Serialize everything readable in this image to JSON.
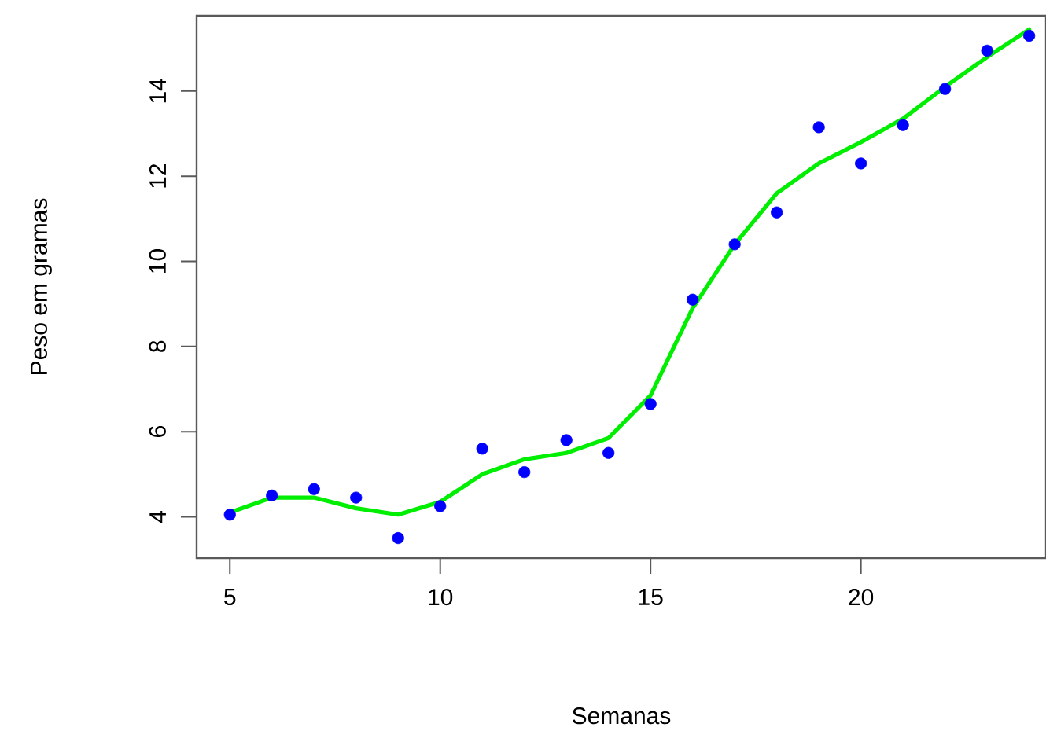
{
  "chart_data": {
    "type": "scatter",
    "xlabel": "Semanas",
    "ylabel": "Peso em gramas",
    "xlim": [
      4.21,
      24.4
    ],
    "ylim": [
      3.03,
      15.77
    ],
    "xticks": [
      5,
      10,
      15,
      20
    ],
    "yticks": [
      4,
      6,
      8,
      10,
      12,
      14
    ],
    "series": [
      {
        "type": "scatter",
        "color": "#0000ff",
        "marker": "circle",
        "x": [
          5,
          6,
          7,
          8,
          9,
          10,
          11,
          12,
          13,
          14,
          15,
          16,
          17,
          18,
          19,
          20,
          21,
          22,
          23,
          24
        ],
        "values": [
          4.05,
          4.5,
          4.65,
          4.45,
          3.5,
          4.25,
          5.6,
          5.05,
          5.8,
          5.5,
          6.65,
          9.1,
          10.4,
          11.15,
          13.15,
          12.3,
          13.2,
          14.05,
          14.95,
          15.3
        ]
      },
      {
        "type": "line",
        "color": "#00ee00",
        "marker": "none",
        "line_style": "solid",
        "x": [
          5,
          6,
          7,
          8,
          9,
          10,
          11,
          12,
          13,
          14,
          15,
          16,
          17,
          18,
          19,
          20,
          21,
          22,
          23,
          24
        ],
        "values": [
          4.1,
          4.45,
          4.45,
          4.2,
          4.05,
          4.35,
          5.0,
          5.35,
          5.5,
          5.85,
          6.85,
          8.9,
          10.4,
          11.6,
          12.3,
          12.8,
          13.35,
          14.1,
          14.8,
          15.45
        ]
      }
    ]
  }
}
